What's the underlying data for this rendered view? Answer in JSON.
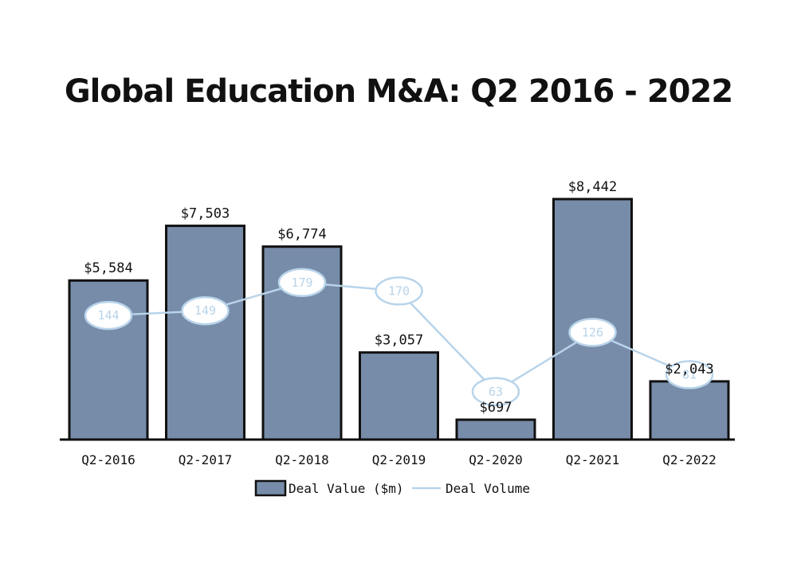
{
  "chart_data": {
    "type": "bar",
    "title": "Global Education M&A: Q2 2016 - 2022",
    "categories": [
      "Q2-2016",
      "Q2-2017",
      "Q2-2018",
      "Q2-2019",
      "Q2-2020",
      "Q2-2021",
      "Q2-2022"
    ],
    "series": [
      {
        "name": "Deal Value ($m)",
        "type": "bar",
        "values": [
          5584,
          7503,
          6774,
          3057,
          697,
          8442,
          2043
        ],
        "labels": [
          "$5,584",
          "$7,503",
          "$6,774",
          "$3,057",
          "$697",
          "$8,442",
          "$2,043"
        ],
        "color": "#778ca8"
      },
      {
        "name": "Deal Volume",
        "type": "line",
        "values": [
          144,
          149,
          179,
          170,
          63,
          126,
          81
        ],
        "color": "#b8d4ea"
      }
    ],
    "legend_position": "bottom-center",
    "grid": false
  }
}
